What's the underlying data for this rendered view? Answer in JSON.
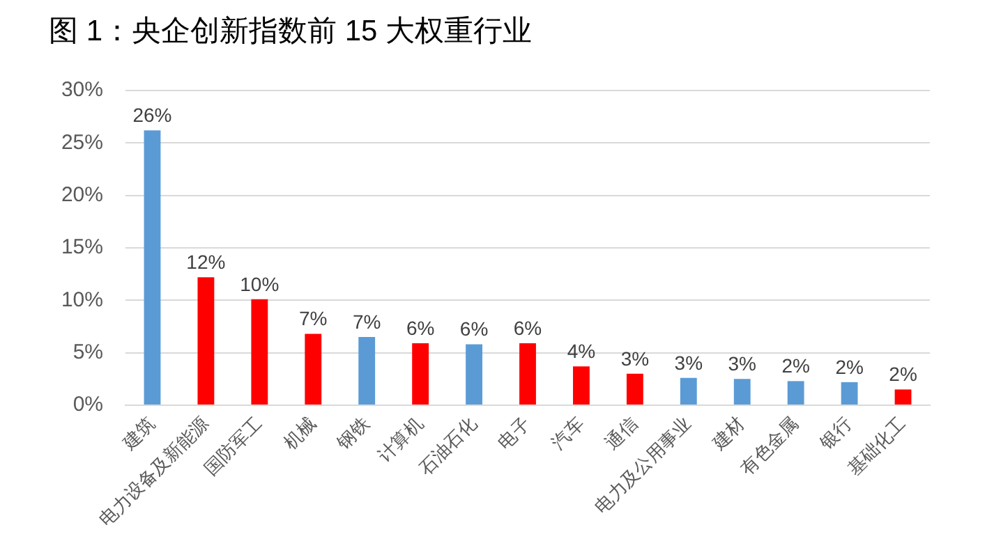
{
  "chart_data": {
    "type": "bar",
    "title": "图 1：央企创新指数前 15 大权重行业",
    "categories": [
      "建筑",
      "电力设备及新能源",
      "国防军工",
      "机械",
      "钢铁",
      "计算机",
      "石油石化",
      "电子",
      "汽车",
      "通信",
      "电力及公用事业",
      "建材",
      "有色金属",
      "银行",
      "基础化工"
    ],
    "values": [
      26.2,
      12.2,
      10.1,
      6.8,
      6.5,
      5.9,
      5.8,
      5.9,
      3.7,
      3.0,
      2.6,
      2.5,
      2.3,
      2.2,
      1.5
    ],
    "colors": [
      "#5b9bd5",
      "#ff0000",
      "#ff0000",
      "#ff0000",
      "#5b9bd5",
      "#ff0000",
      "#5b9bd5",
      "#ff0000",
      "#ff0000",
      "#ff0000",
      "#5b9bd5",
      "#5b9bd5",
      "#5b9bd5",
      "#5b9bd5",
      "#ff0000"
    ],
    "value_labels": [
      "26%",
      "12%",
      "10%",
      "7%",
      "7%",
      "6%",
      "6%",
      "6%",
      "4%",
      "3%",
      "3%",
      "3%",
      "2%",
      "2%",
      "2%"
    ],
    "ylim": [
      0,
      30
    ],
    "yticks": [
      {
        "value": 0,
        "label": "0%"
      },
      {
        "value": 5,
        "label": "5%"
      },
      {
        "value": 10,
        "label": "10%"
      },
      {
        "value": 15,
        "label": "15%"
      },
      {
        "value": 20,
        "label": "20%"
      },
      {
        "value": 25,
        "label": "25%"
      },
      {
        "value": 30,
        "label": "30%"
      }
    ],
    "grid": "y"
  }
}
